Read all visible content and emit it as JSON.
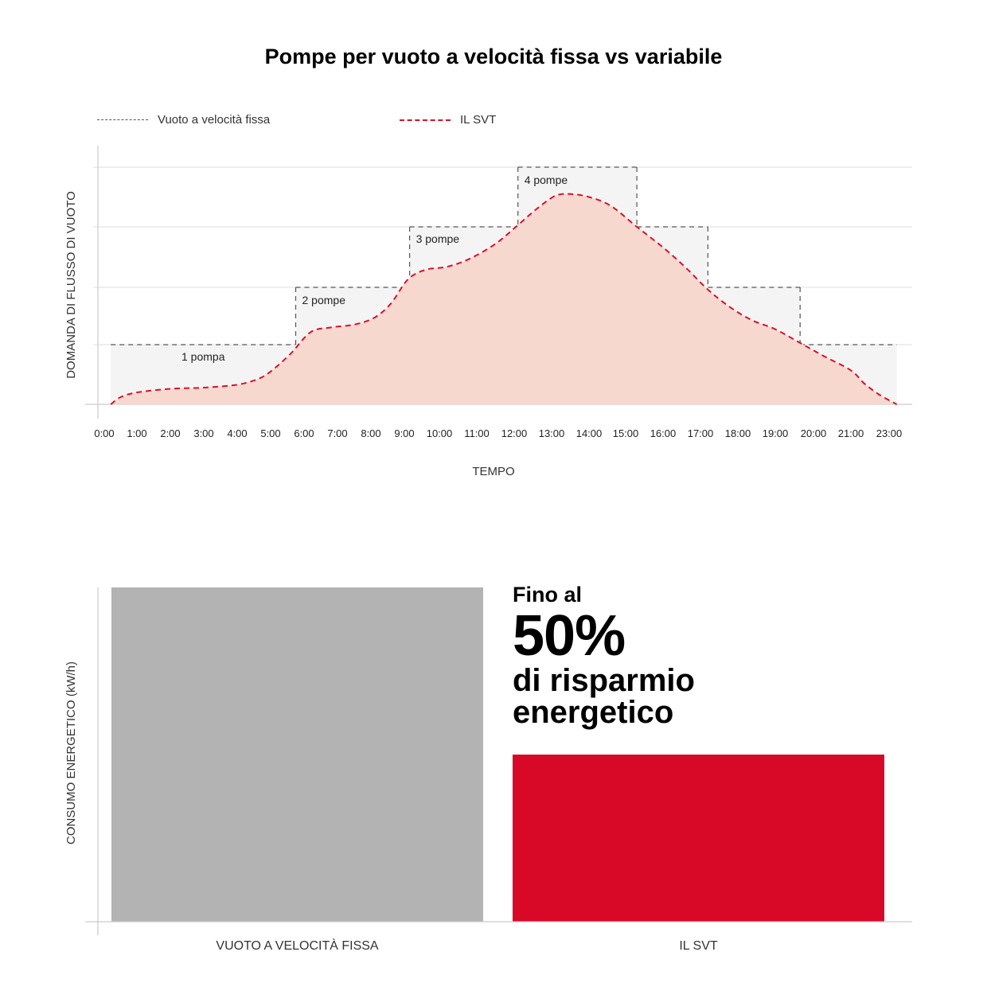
{
  "title": "Pompe per vuoto a velocità fissa vs variabile",
  "legend": {
    "fixed": "Vuoto a velocità fissa",
    "svt": "IL SVT"
  },
  "colors": {
    "svt_line": "#d7112b",
    "svt_fill": "#f7d8cf",
    "fixed_line": "#555555",
    "fixed_fill": "#f4f4f4",
    "bar_fixed": "#b3b3b3",
    "bar_svt": "#d70927"
  },
  "chart_data": [
    {
      "type": "area",
      "title": "Pompe per vuoto a velocità fissa vs variabile",
      "xlabel": "TEMPO",
      "ylabel": "DOMANDA DI FLUSSO DI VUOTO",
      "x_ticks": [
        "0:00",
        "1:00",
        "2:00",
        "3:00",
        "4:00",
        "5:00",
        "6:00",
        "7:00",
        "8:00",
        "9:00",
        "10:00",
        "11:00",
        "12:00",
        "13:00",
        "14:00",
        "15:00",
        "16:00",
        "17:00",
        "18:00",
        "19:00",
        "20:00",
        "21:00",
        "23:00"
      ],
      "ylim": [
        0,
        4
      ],
      "grid": true,
      "legend_position": "top-left",
      "series": [
        {
          "name": "Vuoto a velocità fissa",
          "style": "dashed-step",
          "steps": [
            {
              "from": 0.2,
              "to": 5.75,
              "value": 1,
              "label": "1 pompa"
            },
            {
              "from": 5.75,
              "to": 9.15,
              "value": 2,
              "label": "2 pompe"
            },
            {
              "from": 9.15,
              "to": 12.1,
              "value": 3,
              "label": "3 pompe"
            },
            {
              "from": 12.1,
              "to": 15.3,
              "value": 4,
              "label": "4 pompe"
            },
            {
              "from": 15.3,
              "to": 17.2,
              "value": 3
            },
            {
              "from": 17.2,
              "to": 19.65,
              "value": 2
            },
            {
              "from": 19.65,
              "to": 23.4,
              "value": 1
            }
          ]
        },
        {
          "name": "IL SVT",
          "style": "dashed-smooth",
          "x": [
            0.2,
            0.5,
            1.0,
            2.0,
            3.0,
            4.0,
            4.6,
            5.0,
            5.6,
            6.2,
            6.8,
            7.5,
            8.1,
            8.6,
            9.1,
            9.6,
            10.2,
            10.8,
            11.5,
            12.1,
            12.6,
            13.1,
            13.5,
            14.0,
            14.6,
            15.3,
            16.0,
            16.6,
            17.2,
            17.8,
            18.4,
            19.0,
            19.65,
            20.3,
            21.0,
            21.7,
            22.5,
            23.4
          ],
          "y": [
            0.0,
            0.12,
            0.2,
            0.26,
            0.28,
            0.33,
            0.42,
            0.55,
            0.85,
            1.22,
            1.3,
            1.35,
            1.47,
            1.72,
            2.13,
            2.29,
            2.34,
            2.47,
            2.72,
            3.03,
            3.3,
            3.52,
            3.55,
            3.5,
            3.35,
            3.0,
            2.66,
            2.33,
            1.96,
            1.65,
            1.42,
            1.27,
            1.03,
            0.8,
            0.57,
            0.35,
            0.16,
            0.0
          ]
        }
      ]
    },
    {
      "type": "bar",
      "ylabel": "CONSUMO ENERGETICO (kW/h)",
      "categories": [
        "VUOTO A VELOCITÀ FISSA",
        "IL SVT"
      ],
      "values": [
        100,
        50
      ],
      "ylim": [
        0,
        100
      ]
    }
  ],
  "savings": {
    "pre": "Fino al",
    "value": "50%",
    "post": "di risparmio energetico"
  }
}
